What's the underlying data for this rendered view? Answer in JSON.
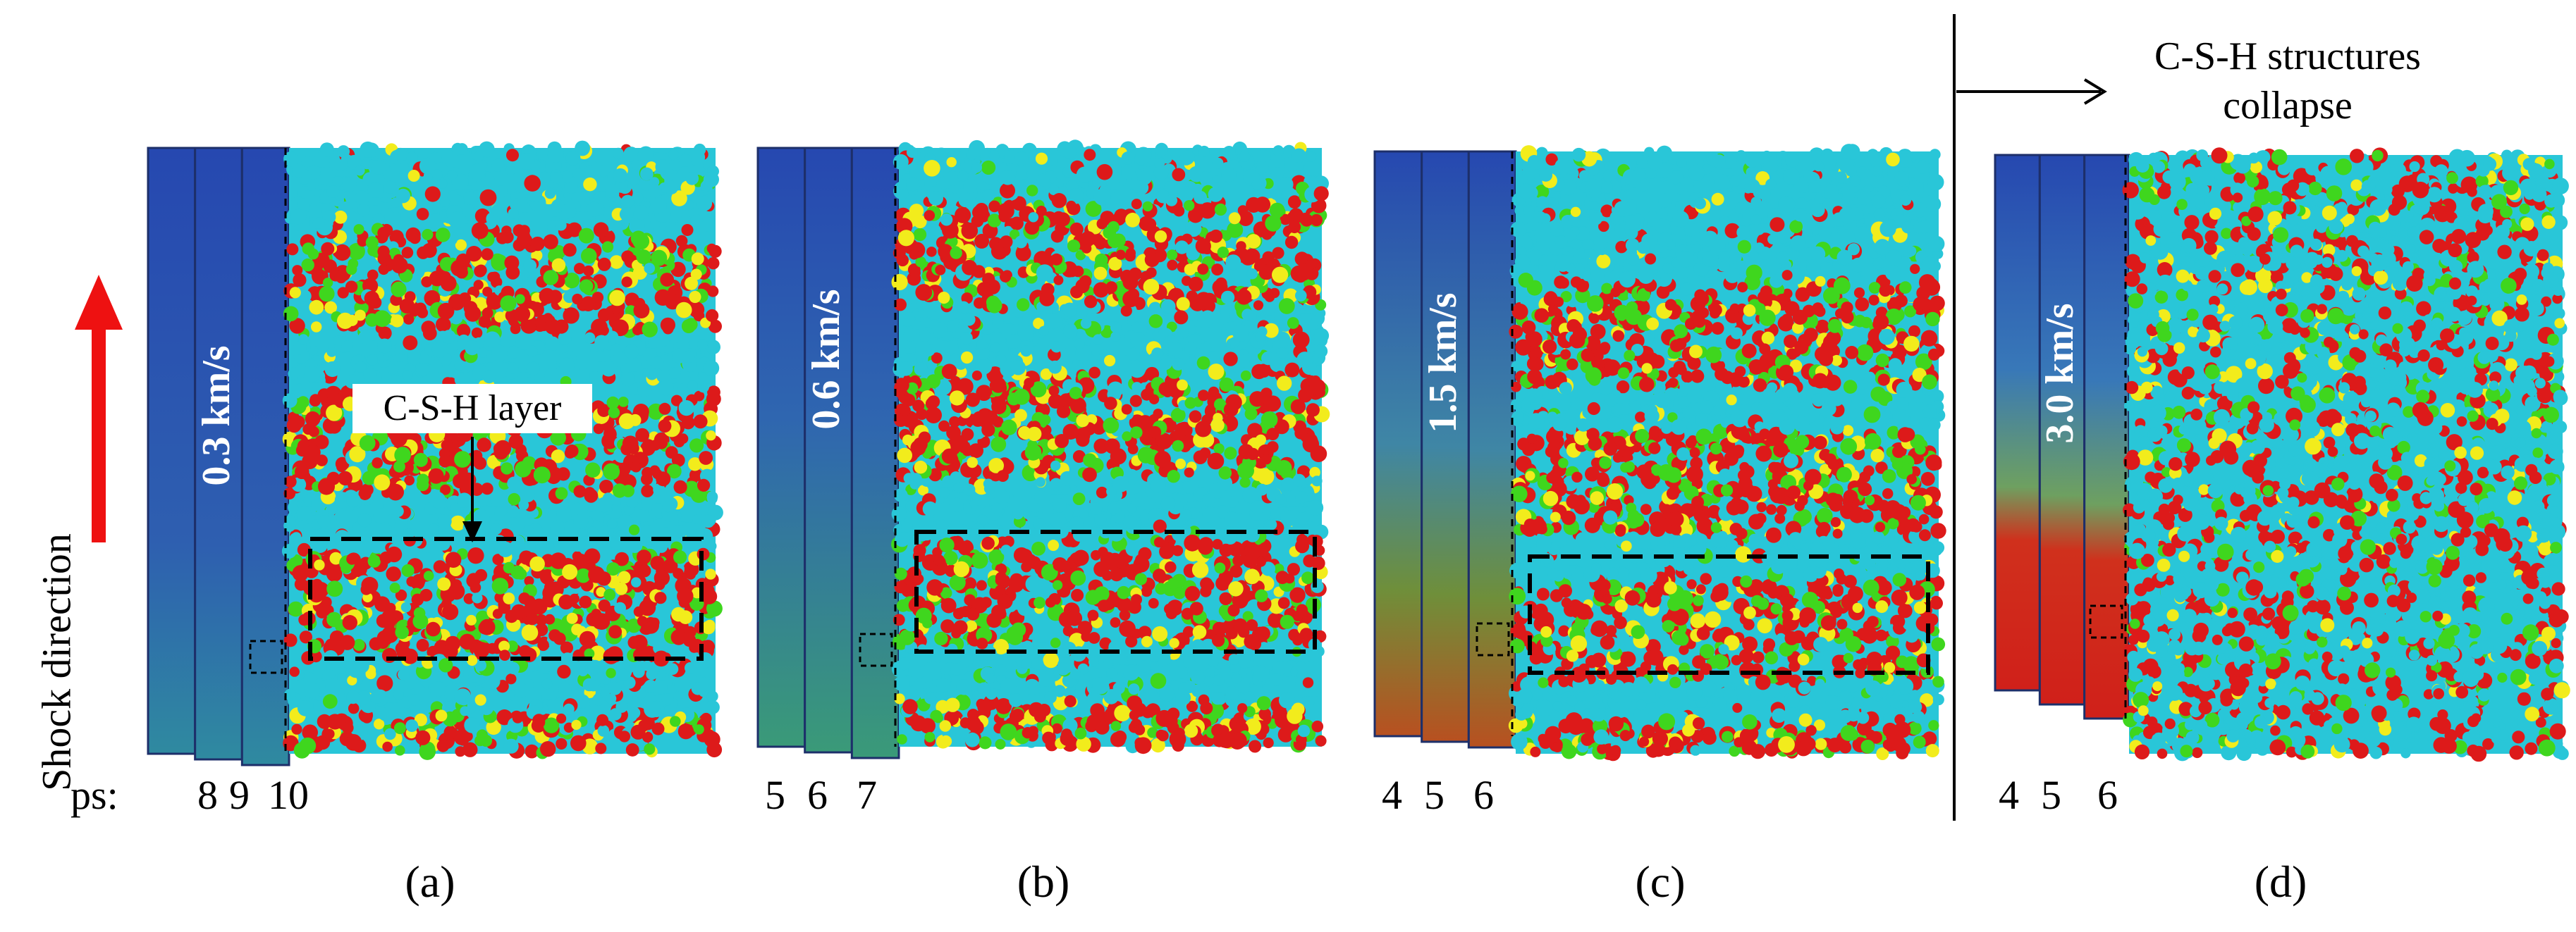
{
  "shock_label": "Shock direction",
  "ps_prefix": "ps:",
  "csh_layer_label": "C-S-H layer",
  "collapse_text": "C-S-H structures collapse",
  "colors": {
    "blue": "#2648b0",
    "cyan": "#29c6d8",
    "red": "#dd1a1a",
    "green": "#3fd61e",
    "yellow": "#f2ec1c",
    "orange_red": "#d2351e",
    "arrow_red": "#ee1111"
  },
  "panels": [
    {
      "id": "a",
      "velocity_text": "0.3 km/s",
      "velocity_kms": 0.3,
      "times": [
        "8",
        "9",
        "10"
      ],
      "caption": "(a)",
      "collapsed": false
    },
    {
      "id": "b",
      "velocity_text": "0.6 km/s",
      "velocity_kms": 0.6,
      "times": [
        "5",
        "6",
        "7"
      ],
      "caption": "(b)",
      "collapsed": false
    },
    {
      "id": "c",
      "velocity_text": "1.5 km/s",
      "velocity_kms": 1.5,
      "times": [
        "4",
        "5",
        "6"
      ],
      "caption": "(c)",
      "collapsed": false
    },
    {
      "id": "d",
      "velocity_text": "3.0 km/s",
      "velocity_kms": 3.0,
      "times": [
        "4",
        "5",
        "6"
      ],
      "caption": "(d)",
      "collapsed": true
    }
  ]
}
